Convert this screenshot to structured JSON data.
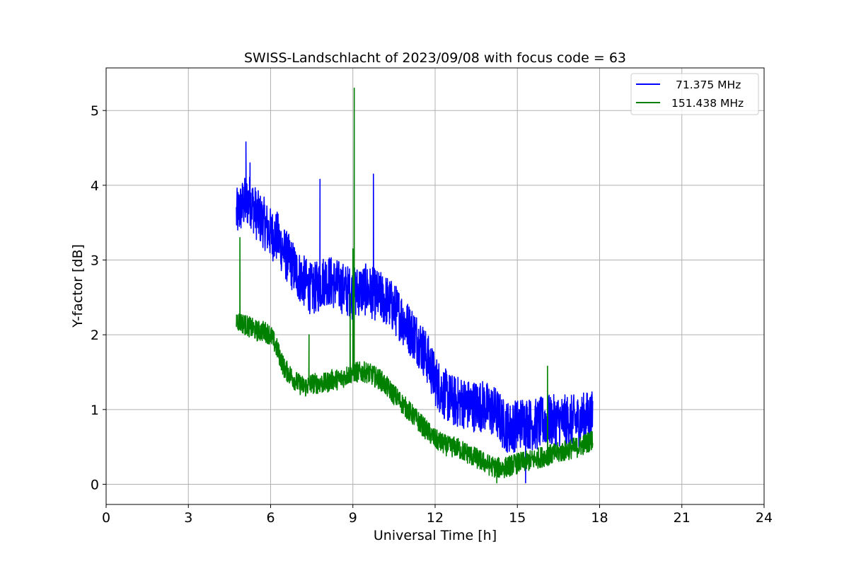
{
  "chart_data": {
    "type": "line",
    "title": "SWISS-Landschlacht of 2023/09/08 with focus code = 63",
    "xlabel": "Universal Time [h]",
    "ylabel": "Y-factor [dB]",
    "xlim": [
      0,
      24
    ],
    "ylim": [
      -0.27,
      5.57
    ],
    "xticks": [
      0,
      3,
      6,
      9,
      12,
      15,
      18,
      21,
      24
    ],
    "yticks": [
      0,
      1,
      2,
      3,
      4,
      5
    ],
    "grid": true,
    "legend_position": "top-right",
    "series": [
      {
        "name": "71.375 MHz",
        "color": "#0000ff",
        "x": [
          4.75,
          5.0,
          5.25,
          5.5,
          5.75,
          6.0,
          6.25,
          6.5,
          6.75,
          7.0,
          7.25,
          7.5,
          7.75,
          8.0,
          8.25,
          8.5,
          8.75,
          9.0,
          9.25,
          9.5,
          9.75,
          10.0,
          10.25,
          10.5,
          10.75,
          11.0,
          11.25,
          11.5,
          11.75,
          12.0,
          12.25,
          12.5,
          12.75,
          13.0,
          13.25,
          13.5,
          13.75,
          14.0,
          14.25,
          14.5,
          14.75,
          15.0,
          15.25,
          15.5,
          15.75,
          16.0,
          16.25,
          16.5,
          16.75,
          17.0,
          17.25,
          17.5,
          17.75
        ],
        "y": [
          3.6,
          3.75,
          3.8,
          3.6,
          3.5,
          3.35,
          3.3,
          3.1,
          2.95,
          2.8,
          2.7,
          2.6,
          2.65,
          2.75,
          2.7,
          2.65,
          2.6,
          2.55,
          2.6,
          2.6,
          2.55,
          2.5,
          2.45,
          2.35,
          2.25,
          2.1,
          2.0,
          1.85,
          1.65,
          1.4,
          1.25,
          1.15,
          1.1,
          1.1,
          1.05,
          1.05,
          1.05,
          1.0,
          0.95,
          0.8,
          0.75,
          0.8,
          0.85,
          0.8,
          0.8,
          0.85,
          0.85,
          0.85,
          0.85,
          0.85,
          0.85,
          0.9,
          0.9
        ],
        "noise": 0.35,
        "spikes": [
          [
            5.1,
            4.58
          ],
          [
            5.25,
            4.3
          ],
          [
            7.8,
            4.08
          ],
          [
            9.75,
            4.15
          ],
          [
            15.3,
            0.02
          ]
        ]
      },
      {
        "name": "151.438 MHz",
        "color": "#008000",
        "x": [
          4.75,
          5.0,
          5.25,
          5.5,
          5.75,
          6.0,
          6.25,
          6.5,
          6.75,
          7.0,
          7.25,
          7.5,
          7.75,
          8.0,
          8.25,
          8.5,
          8.75,
          9.0,
          9.25,
          9.5,
          9.75,
          10.0,
          10.25,
          10.5,
          10.75,
          11.0,
          11.25,
          11.5,
          11.75,
          12.0,
          12.25,
          12.5,
          12.75,
          13.0,
          13.25,
          13.5,
          13.75,
          14.0,
          14.25,
          14.5,
          14.75,
          15.0,
          15.25,
          15.5,
          15.75,
          16.0,
          16.25,
          16.5,
          16.75,
          17.0,
          17.25,
          17.5,
          17.75
        ],
        "y": [
          2.2,
          2.15,
          2.1,
          2.05,
          2.05,
          2.0,
          1.8,
          1.55,
          1.45,
          1.35,
          1.3,
          1.35,
          1.35,
          1.35,
          1.4,
          1.4,
          1.45,
          1.5,
          1.5,
          1.5,
          1.45,
          1.4,
          1.3,
          1.2,
          1.1,
          1.0,
          0.9,
          0.8,
          0.7,
          0.6,
          0.55,
          0.5,
          0.5,
          0.45,
          0.4,
          0.35,
          0.3,
          0.25,
          0.22,
          0.22,
          0.25,
          0.28,
          0.3,
          0.32,
          0.35,
          0.38,
          0.4,
          0.42,
          0.45,
          0.48,
          0.5,
          0.55,
          0.6
        ],
        "noise": 0.14,
        "spikes": [
          [
            4.88,
            3.3
          ],
          [
            9.05,
            5.3
          ],
          [
            9.0,
            3.15
          ],
          [
            8.9,
            2.55
          ],
          [
            7.4,
            2.0
          ],
          [
            16.1,
            1.58
          ],
          [
            14.25,
            0.02
          ]
        ]
      }
    ]
  }
}
